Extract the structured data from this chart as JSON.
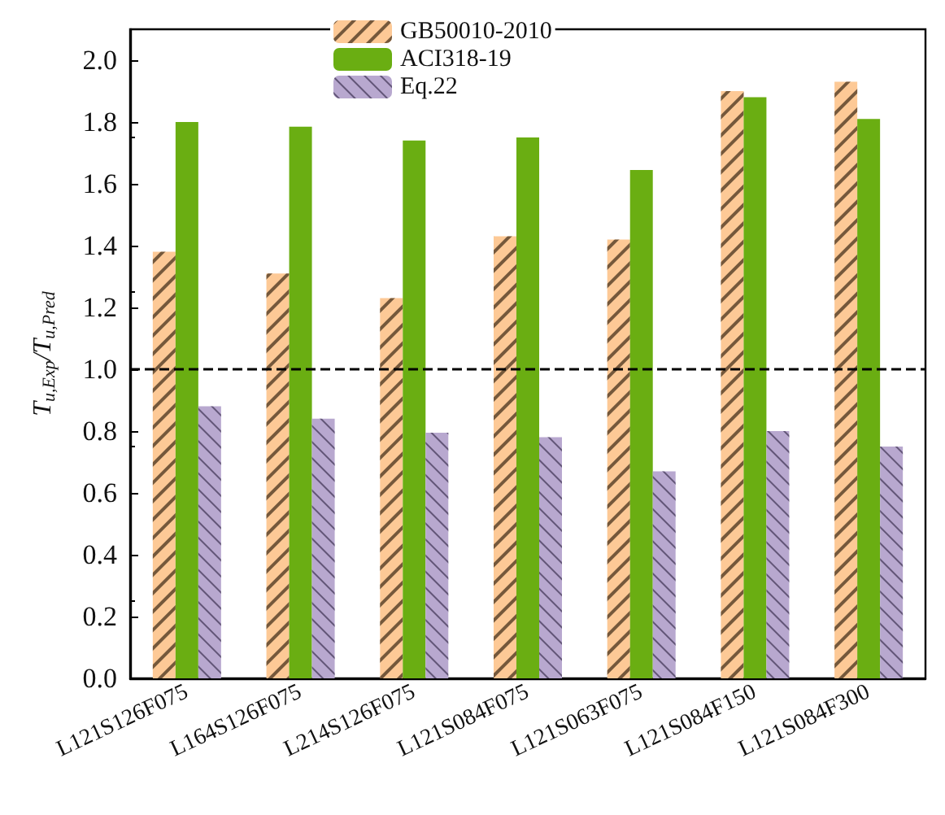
{
  "chart_data": {
    "type": "bar",
    "ylabel": "T$_{u,Exp}$/T$_{u,Pred}$",
    "categories": [
      "L121S126F075",
      "L164S126F075",
      "L214S126F075",
      "L121S084F075",
      "L121S063F075",
      "L121S084F150",
      "L121S084F300"
    ],
    "series": [
      {
        "name": "GB50010-2010",
        "color": "#fdc996",
        "values": [
          1.38,
          1.31,
          1.23,
          1.43,
          1.42,
          1.9,
          1.93
        ]
      },
      {
        "name": "ACI318-19",
        "color": "#6aae12",
        "values": [
          1.8,
          1.785,
          1.74,
          1.75,
          1.645,
          1.88,
          1.81
        ]
      },
      {
        "name": "Eq.22",
        "color": "#b8a8cf",
        "values": [
          0.88,
          0.84,
          0.795,
          0.78,
          0.67,
          0.8,
          0.75
        ]
      }
    ],
    "ylim": [
      0,
      2.1
    ],
    "yticks": [
      {
        "value": 0,
        "label": "0.0"
      },
      0.2,
      0.4,
      0.6,
      0.8,
      {
        "value": 1,
        "label": "1.0"
      },
      1.2,
      1.4,
      1.6,
      1.8,
      {
        "value": 2,
        "label": "2.0"
      }
    ],
    "ref_lines": [
      {
        "axis": "y",
        "value": 1.0,
        "line_style": "dashed",
        "color": "#000000"
      }
    ],
    "grid": false,
    "legend": "top"
  }
}
